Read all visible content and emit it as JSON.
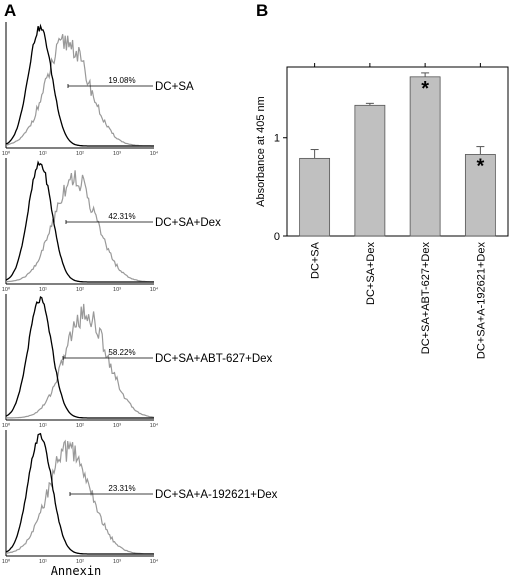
{
  "panel_a": {
    "letter": "A",
    "xaxis_label": "Annexin",
    "tick_labels": [
      "10⁰",
      "10¹",
      "10²",
      "10³",
      "10⁴"
    ],
    "histograms": [
      {
        "condition": "DC+SA",
        "percent": "19.08%",
        "gray_mode": 1.55
      },
      {
        "condition": "DC+SA+Dex",
        "percent": "42.31%",
        "gray_mode": 1.75
      },
      {
        "condition": "DC+SA+ABT-627+Dex",
        "percent": "58.22%",
        "gray_mode": 2.05
      },
      {
        "condition": "DC+SA+A-192621+Dex",
        "percent": "23.31%",
        "gray_mode": 1.6
      }
    ]
  },
  "chart_data": {
    "type": "bar",
    "panel_letter": "B",
    "categories": [
      "DC+SA",
      "DC+SA+Dex",
      "DC+SA+ABT-627+Dex",
      "DC+SA+A-192621+Dex"
    ],
    "values": [
      0.79,
      1.33,
      1.62,
      0.83
    ],
    "errors": [
      0.09,
      0.02,
      0.04,
      0.08
    ],
    "significance": [
      "",
      "",
      "*",
      "*"
    ],
    "ylabel": "Absorbance at 405 nm",
    "ylim": [
      0,
      1.72
    ],
    "yticks": [
      0,
      1
    ],
    "bar_color": "#c0c0c0"
  }
}
